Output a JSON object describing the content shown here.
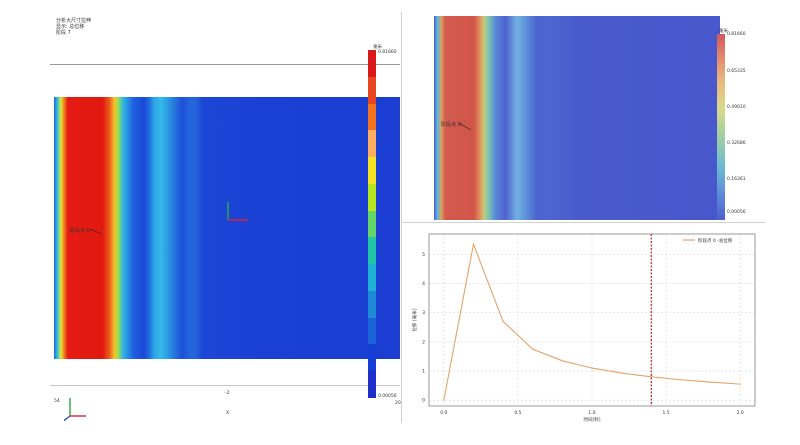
{
  "left_view": {
    "info_lines": [
      "分析大尺寸拉伸",
      "显示: 总位移",
      "阶段 7"
    ],
    "probe_label": "阶段点 0:",
    "axis_label_x": "X",
    "ruler_left": "54",
    "ruler_mid": "-2",
    "ruler_right": "20",
    "colorbar": {
      "unit": "毫米",
      "max": "0.81660",
      "min": "0.00056",
      "colors": [
        "#d7191c",
        "#e8461f",
        "#f2731e",
        "#fdae61",
        "#f6e324",
        "#b5e61d",
        "#64d56b",
        "#22c4a6",
        "#1fb0d6",
        "#1d8ad8",
        "#1a64d8",
        "#163cd6",
        "#1f2fc9"
      ]
    }
  },
  "right_top_view": {
    "probe_label": "阶段点 0:",
    "colorbar": {
      "unit": "毫米",
      "max": "0.81660",
      "t1": "0.65335",
      "t2": "0.49010",
      "t3": "0.32686",
      "t4": "0.16361",
      "min": "0.00056"
    }
  },
  "chart_data": {
    "type": "line",
    "title": "",
    "xlabel": "时间[秒]",
    "ylabel": "位移 [毫米]",
    "xlim": [
      -0.1,
      2.1
    ],
    "ylim": [
      -0.2,
      5.7
    ],
    "xticks": [
      "0.0",
      "0.5",
      "1.0",
      "1.5",
      "2.0"
    ],
    "yticks": [
      "0",
      "1",
      "2",
      "3",
      "4",
      "5"
    ],
    "grid": true,
    "legend_position": "top-right",
    "series": [
      {
        "name": "阶段点 0 -总位移",
        "color": "#e2a36a",
        "x": [
          0.0,
          0.2,
          0.4,
          0.6,
          0.8,
          1.0,
          1.2,
          1.4,
          1.6,
          1.8,
          2.0
        ],
        "y": [
          0.0,
          5.35,
          2.7,
          1.75,
          1.35,
          1.1,
          0.93,
          0.8,
          0.7,
          0.62,
          0.55
        ]
      }
    ],
    "marker_x": 1.4,
    "marker_color": "#b01010"
  }
}
